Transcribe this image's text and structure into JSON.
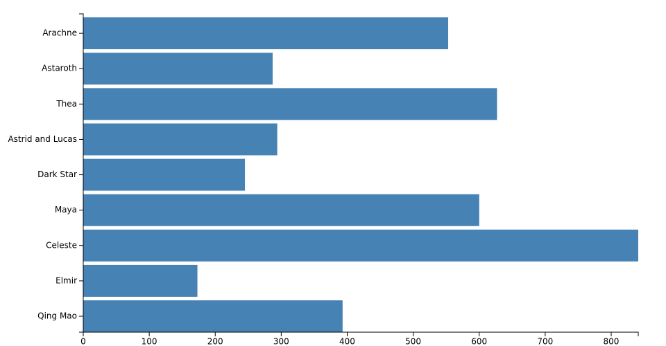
{
  "chart_data": {
    "type": "hbar",
    "categories": [
      "Arachne",
      "Astaroth",
      "Thea",
      "Astrid and Lucas",
      "Dark Star",
      "Maya",
      "Celeste",
      "Elmir",
      "Qing Mao"
    ],
    "values": [
      553,
      287,
      627,
      294,
      245,
      600,
      841,
      173,
      393
    ],
    "color": "#4682b4",
    "xlim": [
      0,
      841
    ],
    "xticks": [
      0,
      100,
      200,
      300,
      400,
      500,
      600,
      700,
      800
    ]
  }
}
